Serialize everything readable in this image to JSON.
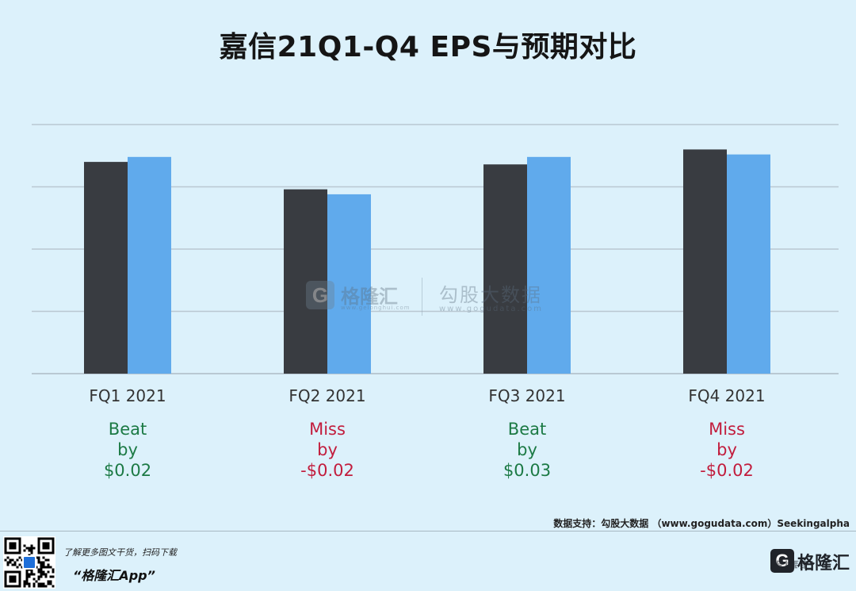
{
  "chart_data": {
    "type": "bar",
    "title": "嘉信21Q1-Q4 EPS与预期对比",
    "categories": [
      "FQ1 2021",
      "FQ2 2021",
      "FQ3 2021",
      "FQ4 2021"
    ],
    "series": [
      {
        "values": [
          0.85,
          0.74,
          0.84,
          0.9
        ]
      },
      {
        "values": [
          0.87,
          0.72,
          0.87,
          0.88
        ]
      }
    ],
    "ylim": [
      0,
      1.0
    ],
    "grid": true,
    "annotations": [
      {
        "status": "Beat",
        "by": "by",
        "amount": "$0.02"
      },
      {
        "status": "Miss",
        "by": "by",
        "amount": "-$0.02"
      },
      {
        "status": "Beat",
        "by": "by",
        "amount": "$0.03"
      },
      {
        "status": "Miss",
        "by": "by",
        "amount": "-$0.02"
      }
    ]
  },
  "colors": {
    "series_dark": "#393c41",
    "series_light": "#60aaec",
    "beat": "#1c7a45",
    "miss": "#c21d3d",
    "gridline": "#b9c8d2",
    "background": "#dcf1fb"
  },
  "watermark": {
    "brand": "格隆汇",
    "brand_url": "www.gelonghui.com",
    "name": "勾股大数据",
    "url": "www.gogudata.com"
  },
  "source": "数据支持：勾股大数据 （www.gogudata.com）Seekingalpha",
  "footer": {
    "tagline": "了解更多图文干货，扫码下载",
    "app": "“格隆汇App”",
    "logo_letter": "G",
    "logo_name": "格隆汇",
    "qr_icon": "qr-code-icon"
  }
}
